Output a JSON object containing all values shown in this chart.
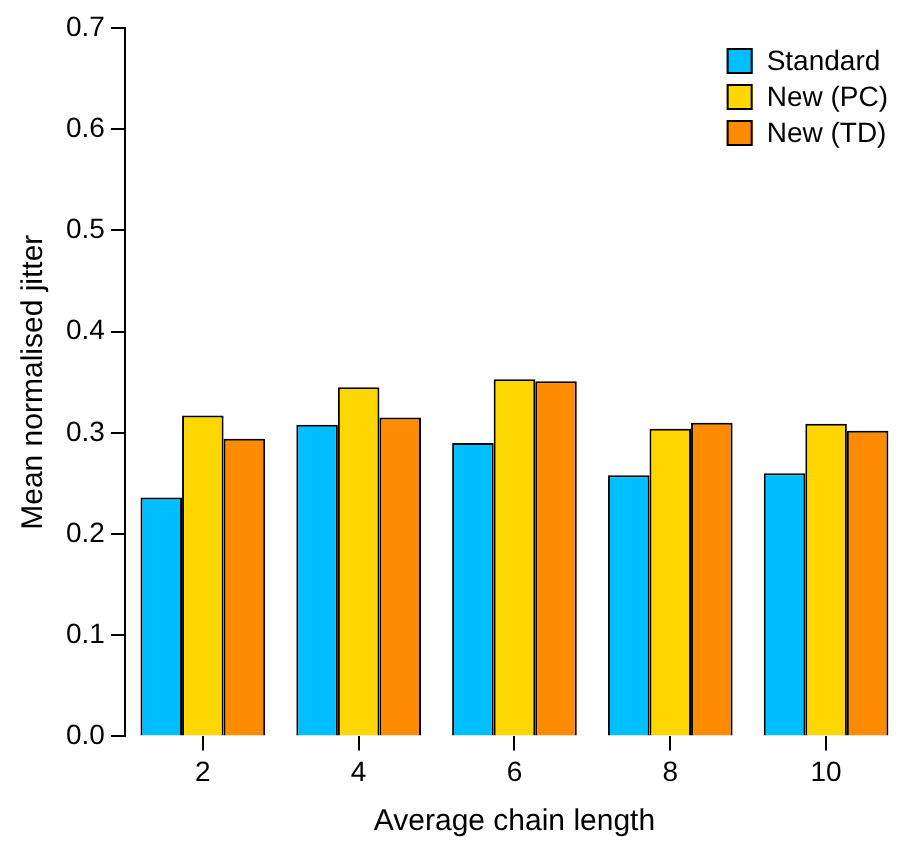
{
  "chart_data": {
    "type": "bar",
    "xlabel": "Average chain length",
    "ylabel": "Mean normalised jitter",
    "categories": [
      "2",
      "4",
      "6",
      "8",
      "10"
    ],
    "series": [
      {
        "name": "Standard",
        "color": "#00bfff",
        "values": [
          0.236,
          0.308,
          0.29,
          0.258,
          0.26
        ]
      },
      {
        "name": "New (PC)",
        "color": "#ffd700",
        "values": [
          0.317,
          0.345,
          0.353,
          0.304,
          0.309
        ]
      },
      {
        "name": "New (TD)",
        "color": "#ff8c00",
        "values": [
          0.294,
          0.315,
          0.351,
          0.31,
          0.302
        ]
      }
    ],
    "ylim": [
      0,
      0.7
    ],
    "yticks": [
      {
        "value": 0,
        "label": "0.0"
      },
      {
        "value": 0.1,
        "label": "0.1"
      },
      {
        "value": 0.2,
        "label": "0.2"
      },
      {
        "value": 0.3,
        "label": "0.3"
      },
      {
        "value": 0.4,
        "label": "0.4"
      },
      {
        "value": 0.5,
        "label": "0.5"
      },
      {
        "value": 0.6,
        "label": "0.6"
      },
      {
        "value": 0.7,
        "label": "0.7"
      }
    ],
    "grid": false,
    "legend": "top right"
  }
}
